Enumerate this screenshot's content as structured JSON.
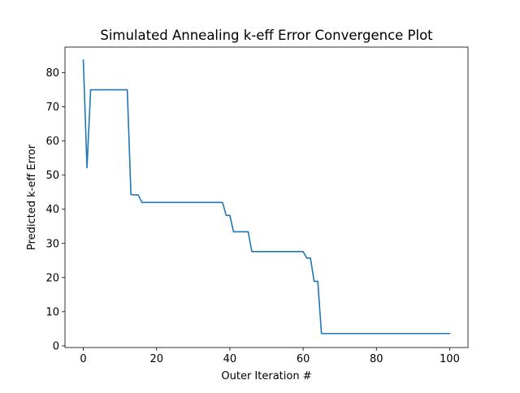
{
  "chart_data": {
    "type": "line",
    "title": "Simulated Annealing k-eff Error Convergence Plot",
    "xlabel": "Outer Iteration #",
    "ylabel": "Predicted k-eff Error",
    "xlim": [
      -5,
      105
    ],
    "ylim": [
      -0.5,
      87.5
    ],
    "xticks": [
      0,
      20,
      40,
      60,
      80,
      100
    ],
    "yticks": [
      0,
      10,
      20,
      30,
      40,
      50,
      60,
      70,
      80
    ],
    "grid": false,
    "line_color": "#1f77b4",
    "series": [
      {
        "x": [
          0,
          1,
          2,
          3,
          4,
          5,
          6,
          7,
          8,
          9,
          10,
          11,
          12,
          13,
          14,
          15,
          16,
          17,
          18,
          19,
          20,
          21,
          22,
          23,
          24,
          25,
          26,
          27,
          28,
          29,
          30,
          31,
          32,
          33,
          34,
          35,
          36,
          37,
          38,
          39,
          40,
          41,
          42,
          43,
          44,
          45,
          46,
          47,
          48,
          49,
          50,
          51,
          52,
          53,
          54,
          55,
          56,
          57,
          58,
          59,
          60,
          61,
          62,
          63,
          64,
          65,
          66,
          67,
          68,
          69,
          70,
          71,
          72,
          73,
          74,
          75,
          76,
          77,
          78,
          79,
          80,
          81,
          82,
          83,
          84,
          85,
          86,
          87,
          88,
          89,
          90,
          91,
          92,
          93,
          94,
          95,
          96,
          97,
          98,
          99,
          100
        ],
        "y": [
          83.7,
          52.2,
          75.0,
          75.0,
          75.0,
          75.0,
          75.0,
          75.0,
          75.0,
          75.0,
          75.0,
          75.0,
          75.0,
          44.3,
          44.2,
          44.2,
          42.0,
          42.0,
          42.0,
          42.0,
          42.0,
          42.0,
          42.0,
          42.0,
          42.0,
          42.0,
          42.0,
          42.0,
          42.0,
          42.0,
          42.0,
          42.0,
          42.0,
          42.0,
          42.0,
          42.0,
          42.0,
          42.0,
          42.0,
          38.2,
          38.2,
          33.4,
          33.4,
          33.4,
          33.4,
          33.4,
          27.6,
          27.6,
          27.6,
          27.6,
          27.6,
          27.6,
          27.6,
          27.6,
          27.6,
          27.6,
          27.6,
          27.6,
          27.6,
          27.6,
          27.6,
          25.7,
          25.7,
          18.9,
          18.9,
          3.6,
          3.6,
          3.6,
          3.6,
          3.6,
          3.6,
          3.6,
          3.6,
          3.6,
          3.6,
          3.6,
          3.6,
          3.6,
          3.6,
          3.6,
          3.6,
          3.6,
          3.6,
          3.6,
          3.6,
          3.6,
          3.6,
          3.6,
          3.6,
          3.6,
          3.6,
          3.6,
          3.6,
          3.6,
          3.6,
          3.6,
          3.6,
          3.6,
          3.6,
          3.6,
          3.6
        ]
      }
    ]
  }
}
